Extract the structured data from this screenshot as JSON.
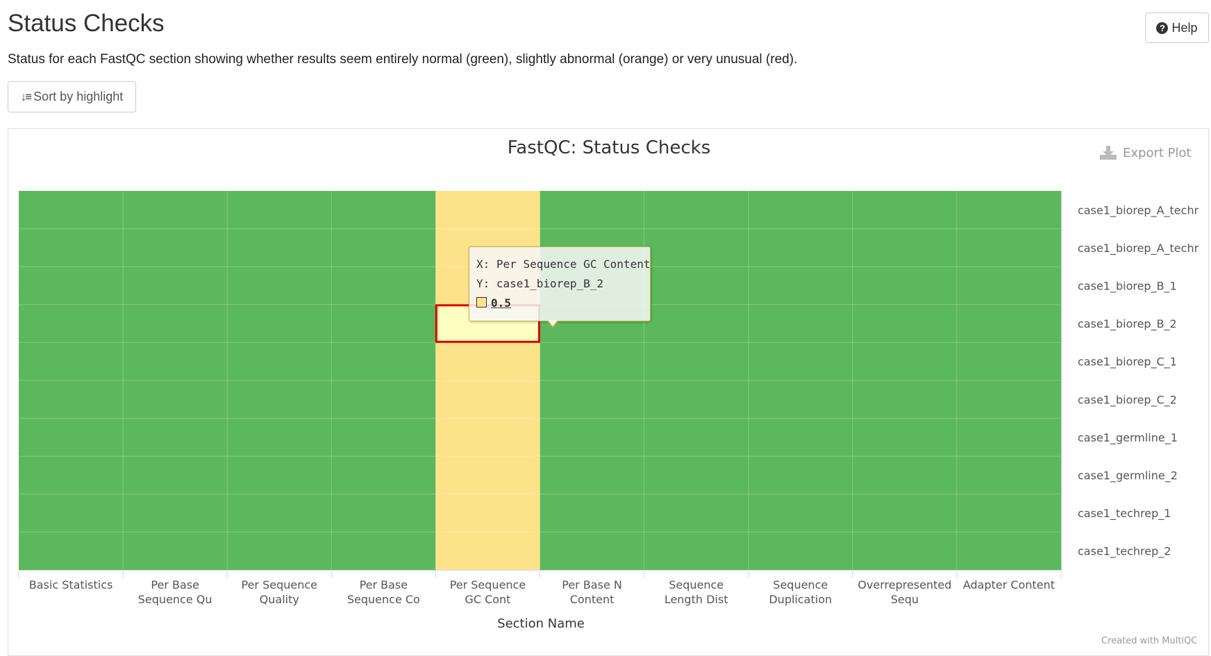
{
  "header": {
    "title": "Status Checks",
    "description": "Status for each FastQC section showing whether results seem entirely normal (green), slightly abnormal (orange) or very unusual (red).",
    "help_label": "Help",
    "sort_label": "Sort by highlight"
  },
  "plot": {
    "export_label": "Export Plot",
    "credit": "Created with MultiQC"
  },
  "colors": {
    "pass": "#5cb85c",
    "warn": "#fce38a",
    "fail": "#d9534f",
    "highlight_border": "#dd0000",
    "hover_fill": "#fffec1"
  },
  "tooltip": {
    "x_label": "X:",
    "x_value": "Per Sequence GC Content",
    "y_label": "Y:",
    "y_value": "case1_biorep_B_2",
    "value": "0.5"
  },
  "chart_data": {
    "type": "heatmap",
    "title": "FastQC: Status Checks",
    "xlabel": "Section Name",
    "ylabel": "",
    "x_categories": [
      "Basic Statistics",
      "Per Base Sequence Qu",
      "Per Sequence Quality",
      "Per Base Sequence Co",
      "Per Sequence GC Cont",
      "Per Base N Content",
      "Sequence Length Dist",
      "Sequence Duplication",
      "Overrepresented Sequ",
      "Adapter Content"
    ],
    "x_tick_labels": [
      [
        "Basic Statistics"
      ],
      [
        "Per Base",
        "Sequence Qu"
      ],
      [
        "Per Sequence",
        "Quality"
      ],
      [
        "Per Base",
        "Sequence Co"
      ],
      [
        "Per Sequence",
        "GC Cont"
      ],
      [
        "Per Base N",
        "Content"
      ],
      [
        "Sequence",
        "Length Dist"
      ],
      [
        "Sequence",
        "Duplication"
      ],
      [
        "Overrepresented",
        "Sequ"
      ],
      [
        "Adapter Content"
      ]
    ],
    "y_categories": [
      "case1_biorep_A_techr",
      "case1_biorep_A_techr",
      "case1_biorep_B_1",
      "case1_biorep_B_2",
      "case1_biorep_C_1",
      "case1_biorep_C_2",
      "case1_germline_1",
      "case1_germline_2",
      "case1_techrep_1",
      "case1_techrep_2"
    ],
    "values": [
      [
        1,
        1,
        1,
        1,
        0.5,
        1,
        1,
        1,
        1,
        1
      ],
      [
        1,
        1,
        1,
        1,
        0.5,
        1,
        1,
        1,
        1,
        1
      ],
      [
        1,
        1,
        1,
        1,
        0.5,
        1,
        1,
        1,
        1,
        1
      ],
      [
        1,
        1,
        1,
        1,
        0.5,
        1,
        1,
        1,
        1,
        1
      ],
      [
        1,
        1,
        1,
        1,
        0.5,
        1,
        1,
        1,
        1,
        1
      ],
      [
        1,
        1,
        1,
        1,
        0.5,
        1,
        1,
        1,
        1,
        1
      ],
      [
        1,
        1,
        1,
        1,
        0.5,
        1,
        1,
        1,
        1,
        1
      ],
      [
        1,
        1,
        1,
        1,
        0.5,
        1,
        1,
        1,
        1,
        1
      ],
      [
        1,
        1,
        1,
        1,
        0.5,
        1,
        1,
        1,
        1,
        1
      ],
      [
        1,
        1,
        1,
        1,
        0.5,
        1,
        1,
        1,
        1,
        1
      ]
    ],
    "value_meaning": {
      "1": "pass",
      "0.5": "warn",
      "0.25": "fail"
    },
    "hovered_cell": {
      "x": "Per Sequence GC Cont",
      "y": "case1_biorep_B_2",
      "value": 0.5
    },
    "grid": true,
    "legend": "none"
  }
}
